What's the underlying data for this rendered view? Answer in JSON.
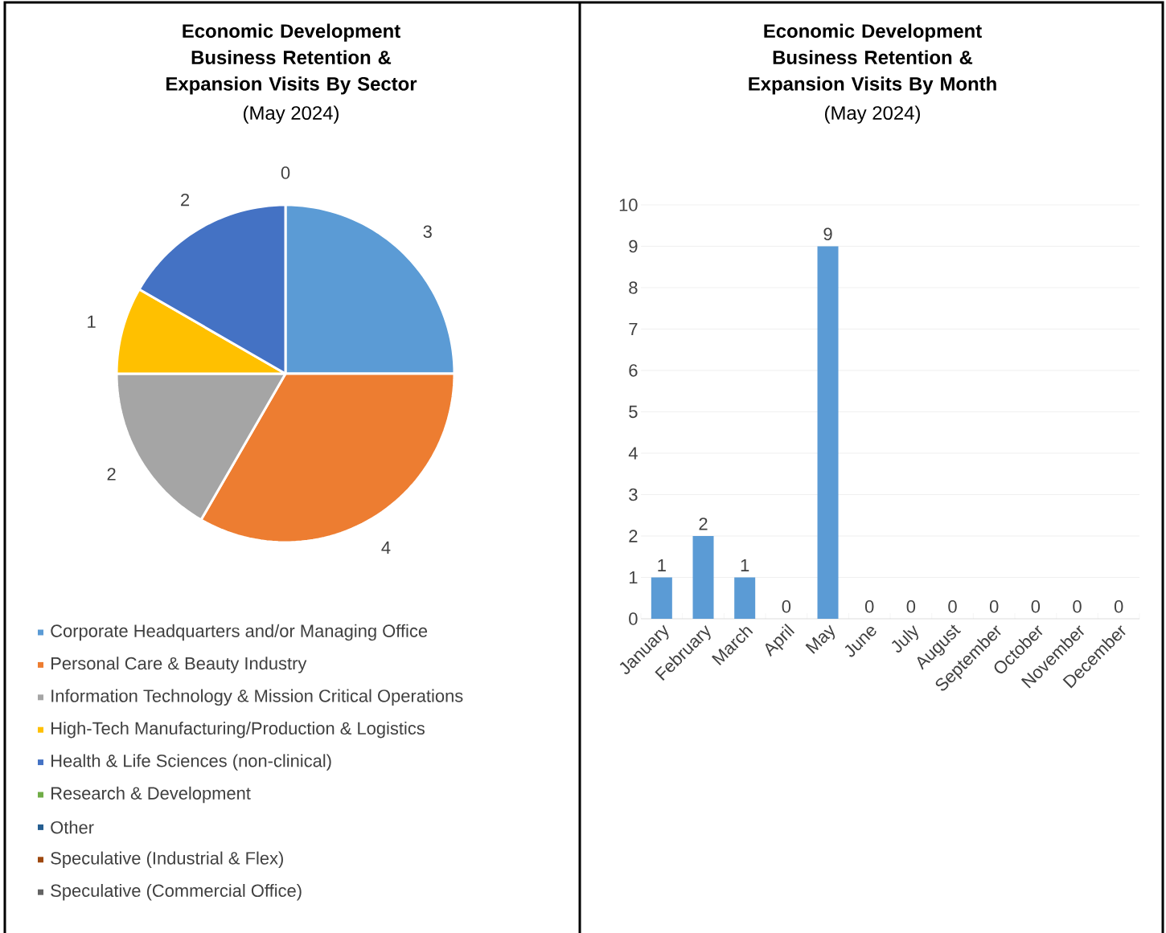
{
  "chart_data": [
    {
      "type": "pie",
      "title": "Economic Development Business Retention & Expansion Visits By Sector",
      "subtitle": "(May 2024)",
      "categories": [
        "Corporate Headquarters and/or Managing Office",
        "Personal Care & Beauty Industry",
        "Information Technology & Mission Critical Operations",
        "High-Tech Manufacturing/Production & Logistics",
        "Health & Life Sciences (non-clinical)",
        "Research & Development",
        "Other",
        "Speculative (Industrial & Flex)",
        "Speculative (Commercial Office)"
      ],
      "values": [
        3,
        4,
        2,
        1,
        2,
        0,
        0,
        0,
        0
      ],
      "colors": [
        "#5b9bd5",
        "#ed7d31",
        "#a5a5a5",
        "#ffc000",
        "#4472c4",
        "#70ad47",
        "#255e91",
        "#9e480e",
        "#636363"
      ],
      "value_labels": [
        "3",
        "4",
        "2",
        "1",
        "2",
        "0",
        null,
        null,
        null
      ],
      "legend": "bottom"
    },
    {
      "type": "bar",
      "title": "Economic Development Business Retention & Expansion Visits By Month",
      "subtitle": "(May 2024)",
      "categories": [
        "January",
        "February",
        "March",
        "April",
        "May",
        "June",
        "July",
        "August",
        "September",
        "October",
        "November",
        "December"
      ],
      "values": [
        1,
        2,
        1,
        0,
        9,
        0,
        0,
        0,
        0,
        0,
        0,
        0
      ],
      "color": "#5b9bd5",
      "ylim": [
        0,
        10
      ],
      "yticks": [
        0,
        1,
        2,
        3,
        4,
        5,
        6,
        7,
        8,
        9,
        10
      ],
      "grid": "y",
      "data_labels": true
    }
  ]
}
